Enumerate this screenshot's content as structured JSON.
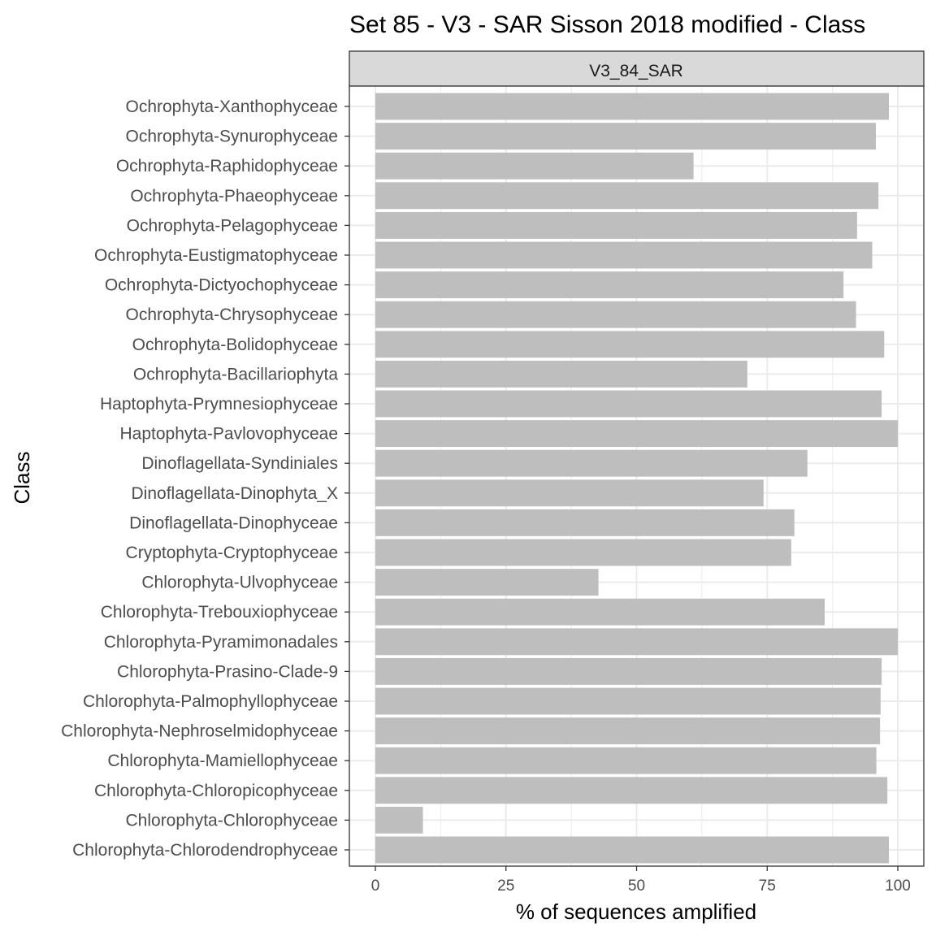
{
  "chart_data": {
    "type": "bar",
    "orientation": "horizontal",
    "title": "Set 85 - V3 - SAR Sisson 2018 modified - Class",
    "facet_label": "V3_84_SAR",
    "xlabel": "% of sequences amplified",
    "ylabel": "Class",
    "xlim": [
      0,
      100
    ],
    "xticks": [
      0,
      25,
      50,
      75,
      100
    ],
    "grid": true,
    "categories": [
      "Ochrophyta-Xanthophyceae",
      "Ochrophyta-Synurophyceae",
      "Ochrophyta-Raphidophyceae",
      "Ochrophyta-Phaeophyceae",
      "Ochrophyta-Pelagophyceae",
      "Ochrophyta-Eustigmatophyceae",
      "Ochrophyta-Dictyochophyceae",
      "Ochrophyta-Chrysophyceae",
      "Ochrophyta-Bolidophyceae",
      "Ochrophyta-Bacillariophyta",
      "Haptophyta-Prymnesiophyceae",
      "Haptophyta-Pavlovophyceae",
      "Dinoflagellata-Syndiniales",
      "Dinoflagellata-Dinophyta_X",
      "Dinoflagellata-Dinophyceae",
      "Cryptophyta-Cryptophyceae",
      "Chlorophyta-Ulvophyceae",
      "Chlorophyta-Trebouxiophyceae",
      "Chlorophyta-Pyramimonadales",
      "Chlorophyta-Prasino-Clade-9",
      "Chlorophyta-Palmophyllophyceae",
      "Chlorophyta-Nephroselmidophyceae",
      "Chlorophyta-Mamiellophyceae",
      "Chlorophyta-Chloropicophyceae",
      "Chlorophyta-Chlorophyceae",
      "Chlorophyta-Chlorodendrophyceae"
    ],
    "values": [
      98.3,
      95.8,
      60.9,
      96.3,
      92.2,
      95.1,
      89.6,
      92.0,
      97.4,
      71.2,
      96.9,
      100,
      82.7,
      74.3,
      80.2,
      79.6,
      42.7,
      86.0,
      100,
      96.9,
      96.7,
      96.6,
      95.9,
      98.0,
      9.1,
      98.3
    ],
    "colors": {
      "bar": "#bebebe",
      "strip_fill": "#d9d9d9",
      "panel_border": "#333333",
      "grid": "#ebebeb"
    }
  }
}
